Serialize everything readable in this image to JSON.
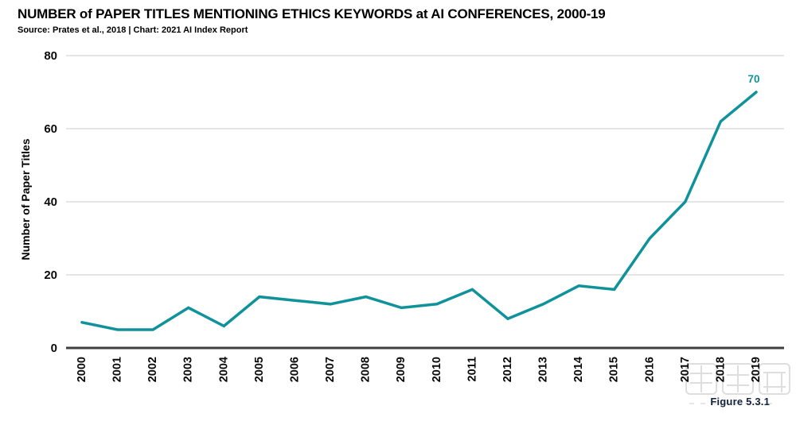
{
  "header": {
    "title": "NUMBER of PAPER TITLES MENTIONING ETHICS KEYWORDS at AI CONFERENCES, 2000-19",
    "source_line": "Source: Prates et al., 2018 | Chart: 2021 AI Index Report"
  },
  "figure_caption": "Figure 5.3.1",
  "watermark": {
    "text": "智东西"
  },
  "colors": {
    "line": "#10929B",
    "annotation": "#10929B",
    "gridline": "#CBCBCB",
    "axis_line": "#3F3F3F",
    "tick_label": "#0A0A0A",
    "caption": "#14213D",
    "watermark": "#DEDEDE"
  },
  "chart_data": {
    "type": "line",
    "title": "NUMBER of PAPER TITLES MENTIONING ETHICS KEYWORDS at AI CONFERENCES, 2000-19",
    "categories": [
      "2000",
      "2001",
      "2002",
      "2003",
      "2004",
      "2005",
      "2006",
      "2007",
      "2008",
      "2009",
      "2010",
      "2011",
      "2012",
      "2013",
      "2014",
      "2015",
      "2016",
      "2017",
      "2018",
      "2019"
    ],
    "series": [
      {
        "name": "Number of Paper Titles",
        "values": [
          7,
          5,
          5,
          11,
          6,
          14,
          13,
          12,
          14,
          11,
          12,
          16,
          8,
          12,
          17,
          16,
          30,
          40,
          62,
          70
        ]
      }
    ],
    "xlabel": "",
    "ylabel": "Number of Paper Titles",
    "ylim": [
      0,
      80
    ],
    "yticks": [
      0,
      20,
      40,
      60,
      80
    ],
    "grid": true,
    "legend": "none",
    "end_label": {
      "category": "2019",
      "value": 70,
      "text": "70"
    }
  }
}
